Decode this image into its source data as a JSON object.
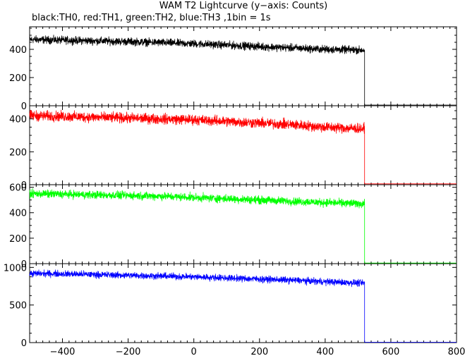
{
  "chart_data": {
    "type": "line",
    "title": "WAM T2 Lightcurve (y−axis: Counts)",
    "subtitle": "black:TH0, red:TH1, green:TH2, blue:TH3 ,1bin = 1s",
    "xlabel": "",
    "xlim": [
      -500,
      800
    ],
    "x_ticks": [
      -400,
      -200,
      0,
      200,
      400,
      600,
      800
    ],
    "x_tick_labels": [
      "−400",
      "−200",
      "0",
      "200",
      "400",
      "600",
      "800"
    ],
    "grid": false,
    "legend": "none",
    "series": [
      {
        "color": "#000000",
        "ylim": [
          0,
          560
        ],
        "y_ticks": [
          0,
          200,
          400
        ],
        "y_tick_labels": [
          "0",
          "200",
          "400"
        ],
        "x": [
          -500,
          -400,
          -300,
          -200,
          -100,
          0,
          100,
          200,
          300,
          400,
          520,
          521,
          800
        ],
        "values": [
          470,
          465,
          460,
          455,
          448,
          440,
          430,
          420,
          410,
          400,
          395,
          5,
          5
        ],
        "noise": 22
      },
      {
        "color": "#ff0000",
        "ylim": [
          0,
          480
        ],
        "y_ticks": [
          0,
          200,
          400
        ],
        "y_tick_labels": [
          "0",
          "200",
          "400"
        ],
        "x": [
          -500,
          -400,
          -300,
          -200,
          -100,
          0,
          100,
          200,
          300,
          400,
          520,
          521,
          800
        ],
        "values": [
          420,
          415,
          410,
          405,
          400,
          395,
          385,
          375,
          365,
          350,
          340,
          5,
          5
        ],
        "noise": 25
      },
      {
        "color": "#00ff00",
        "ylim": [
          0,
          620
        ],
        "y_ticks": [
          0,
          200,
          400,
          600
        ],
        "y_tick_labels": [
          "0",
          "200",
          "400",
          "600"
        ],
        "x": [
          -500,
          -400,
          -300,
          -200,
          -100,
          0,
          100,
          200,
          300,
          400,
          520,
          521,
          800
        ],
        "values": [
          550,
          545,
          540,
          535,
          530,
          520,
          510,
          500,
          490,
          480,
          470,
          5,
          5
        ],
        "noise": 25
      },
      {
        "color": "#0000ff",
        "ylim": [
          0,
          1050
        ],
        "y_ticks": [
          0,
          500,
          1000
        ],
        "y_tick_labels": [
          "0",
          "500",
          "1000"
        ],
        "x": [
          -500,
          -400,
          -300,
          -200,
          -100,
          0,
          100,
          200,
          300,
          400,
          520,
          521,
          800
        ],
        "values": [
          920,
          915,
          905,
          895,
          885,
          875,
          860,
          845,
          830,
          810,
          790,
          5,
          5
        ],
        "noise": 35
      }
    ]
  }
}
